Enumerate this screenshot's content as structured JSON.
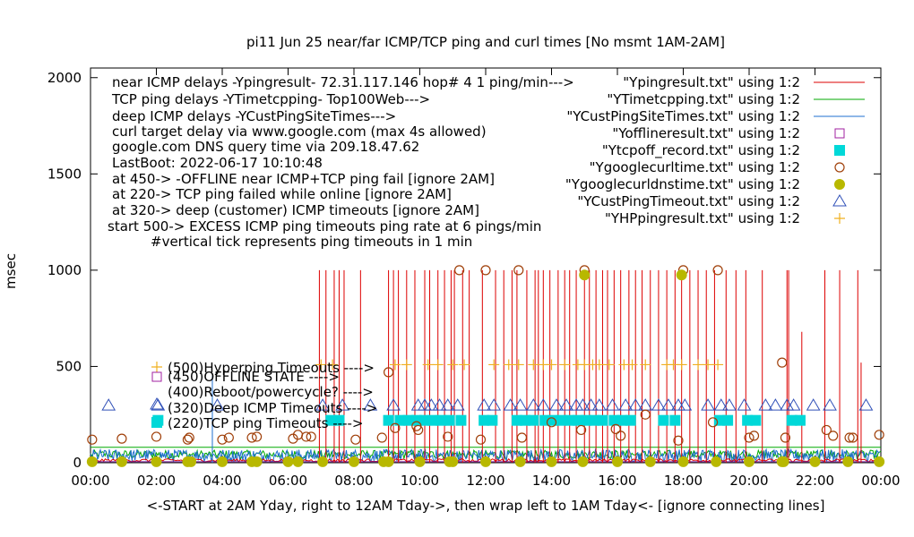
{
  "chart_data": {
    "type": "line",
    "title": "pi11 Jun 25  near/far ICMP/TCP ping and curl times [No msmt 1AM-2AM]",
    "ylabel": "msec",
    "xlabel": "<-START at 2AM Yday, right to 12AM Tday->, then wrap left to 1AM Tday<- [ignore connecting lines]",
    "xlim": [
      0,
      24
    ],
    "ylim": [
      0,
      2050
    ],
    "grid": false,
    "legend_position": "top-right",
    "y_ticks": [
      "0",
      "500",
      "1000",
      "1500",
      "2000"
    ],
    "x_ticks": [
      "00:00",
      "02:00",
      "04:00",
      "06:00",
      "08:00",
      "10:00",
      "12:00",
      "14:00",
      "16:00",
      "18:00",
      "20:00",
      "22:00",
      "00:00"
    ],
    "annotations": [
      "near ICMP delays -Ypingresult- 72.31.117.146 hop# 4 1 ping/min--->",
      "TCP ping delays -YTimetcpping- Top100Web--->",
      "deep ICMP delays -YCustPingSiteTimes--->",
      "curl target delay via www.google.com (max 4s allowed)",
      "google.com DNS query time via 209.18.47.62",
      "LastBoot: 2022-06-17 10:10:48",
      "at 450-> -OFFLINE near ICMP+TCP ping fail [ignore 2AM]",
      "at 220-> TCP ping failed while online [ignore 2AM]",
      "at 320-> deep (customer) ICMP timeouts [ignore 2AM]",
      "start 500-> EXCESS ICMP ping timeouts ping rate at 6 pings/min",
      "#vertical tick represents ping timeouts in 1 min"
    ],
    "inner_legend": [
      {
        "symbol": "plus",
        "label": "(500)Hyperping Timeouts ---->"
      },
      {
        "symbol": "square",
        "label": "(450)OFFLINE STATE ---->"
      },
      {
        "symbol": "none",
        "label": "(400)Reboot/powercycle? ---->"
      },
      {
        "symbol": "triangle",
        "label": "(320)Deep ICMP Timeouts ---->"
      },
      {
        "symbol": "filledsquare",
        "label": "(220)TCP ping Timeouts ---->"
      }
    ],
    "series": [
      {
        "name": "\"Ypingresult.txt\" using 1:2",
        "style": "line",
        "color": "#dd0000"
      },
      {
        "name": "\"YTimetcpping.txt\" using 1:2",
        "style": "line",
        "color": "#00aa00"
      },
      {
        "name": "\"YCustPingSiteTimes.txt\" using 1:2",
        "style": "line",
        "color": "#1f6fd0"
      },
      {
        "name": "\"Yofflineresult.txt\" using 1:2",
        "style": "square",
        "color": "#a020a0"
      },
      {
        "name": "\"Ytcpoff_record.txt\" using 1:2",
        "style": "filledsquare",
        "color": "#00d8d8"
      },
      {
        "name": "\"Ygooglecurltime.txt\" using 1:2",
        "style": "circle",
        "color": "#a0400a"
      },
      {
        "name": "\"Ygooglecurldnstime.txt\" using 1:2",
        "style": "filledcircle",
        "color": "#b8b800"
      },
      {
        "name": "\"YCustPingTimeout.txt\" using 1:2",
        "style": "triangle",
        "color": "#3050b8"
      },
      {
        "name": "\"YHPpingresult.txt\" using 1:2",
        "style": "plus",
        "color": "#f0b020"
      }
    ],
    "data": {
      "ping_spikes": [
        [
          6.95,
          1000
        ],
        [
          7.15,
          1000
        ],
        [
          7.4,
          1000
        ],
        [
          7.55,
          1000
        ],
        [
          7.7,
          1000
        ],
        [
          8.2,
          1000
        ],
        [
          9.05,
          1000
        ],
        [
          9.2,
          1000
        ],
        [
          9.35,
          1000
        ],
        [
          9.6,
          1000
        ],
        [
          9.85,
          1000
        ],
        [
          10.15,
          1000
        ],
        [
          10.3,
          1000
        ],
        [
          10.55,
          1000
        ],
        [
          10.75,
          1000
        ],
        [
          10.95,
          1000
        ],
        [
          11.05,
          1000
        ],
        [
          11.3,
          1000
        ],
        [
          11.5,
          1000
        ],
        [
          11.9,
          1000
        ],
        [
          12.3,
          1000
        ],
        [
          12.55,
          1000
        ],
        [
          12.8,
          1000
        ],
        [
          12.95,
          1000
        ],
        [
          13.25,
          1000
        ],
        [
          13.5,
          1000
        ],
        [
          13.6,
          1000
        ],
        [
          13.75,
          1000
        ],
        [
          13.95,
          1000
        ],
        [
          14.2,
          1000
        ],
        [
          14.4,
          1000
        ],
        [
          14.55,
          1000
        ],
        [
          14.75,
          1000
        ],
        [
          15.0,
          1000
        ],
        [
          15.15,
          1000
        ],
        [
          15.35,
          1000
        ],
        [
          15.55,
          1000
        ],
        [
          15.7,
          1000
        ],
        [
          15.9,
          1000
        ],
        [
          16.1,
          1000
        ],
        [
          16.35,
          1000
        ],
        [
          16.55,
          1000
        ],
        [
          16.75,
          1000
        ],
        [
          17.0,
          1000
        ],
        [
          17.25,
          1000
        ],
        [
          17.5,
          1000
        ],
        [
          17.75,
          1000
        ],
        [
          17.95,
          1000
        ],
        [
          18.2,
          1000
        ],
        [
          18.45,
          1000
        ],
        [
          18.7,
          1000
        ],
        [
          18.95,
          1000
        ],
        [
          19.3,
          1000
        ],
        [
          19.6,
          1000
        ],
        [
          19.9,
          1000
        ],
        [
          20.4,
          1000
        ],
        [
          21.15,
          1000
        ],
        [
          21.2,
          1000
        ],
        [
          21.6,
          680
        ],
        [
          22.3,
          1000
        ],
        [
          22.75,
          1000
        ],
        [
          23.3,
          1000
        ],
        [
          23.4,
          520
        ]
      ],
      "tcp_timeouts_220": [
        [
          2.05,
          220
        ],
        [
          7.3,
          220
        ],
        [
          7.55,
          220
        ],
        [
          9.05,
          220
        ],
        [
          9.4,
          220
        ],
        [
          9.65,
          220
        ],
        [
          9.9,
          220
        ],
        [
          10.15,
          220
        ],
        [
          10.4,
          220
        ],
        [
          10.65,
          220
        ],
        [
          10.9,
          220
        ],
        [
          11.25,
          220
        ],
        [
          11.95,
          220
        ],
        [
          12.2,
          220
        ],
        [
          12.95,
          220
        ],
        [
          13.2,
          220
        ],
        [
          13.45,
          220
        ],
        [
          13.8,
          220
        ],
        [
          14.05,
          220
        ],
        [
          14.3,
          220
        ],
        [
          14.55,
          220
        ],
        [
          14.8,
          220
        ],
        [
          15.05,
          220
        ],
        [
          15.3,
          220
        ],
        [
          15.55,
          220
        ],
        [
          15.9,
          220
        ],
        [
          16.15,
          220
        ],
        [
          16.4,
          220
        ],
        [
          17.4,
          220
        ],
        [
          17.75,
          220
        ],
        [
          19.1,
          220
        ],
        [
          19.35,
          220
        ],
        [
          19.95,
          220
        ],
        [
          20.2,
          220
        ],
        [
          21.3,
          220
        ],
        [
          21.55,
          220
        ]
      ],
      "custping_timeouts_320": [
        [
          0.55,
          320
        ],
        [
          2.05,
          320
        ],
        [
          3.85,
          320
        ],
        [
          7.05,
          320
        ],
        [
          7.65,
          320
        ],
        [
          8.5,
          320
        ],
        [
          9.2,
          320
        ],
        [
          9.95,
          320
        ],
        [
          10.15,
          320
        ],
        [
          10.35,
          320
        ],
        [
          10.6,
          320
        ],
        [
          10.85,
          320
        ],
        [
          11.15,
          320
        ],
        [
          11.95,
          320
        ],
        [
          12.25,
          320
        ],
        [
          12.75,
          320
        ],
        [
          13.05,
          320
        ],
        [
          13.45,
          320
        ],
        [
          13.75,
          320
        ],
        [
          14.15,
          320
        ],
        [
          14.45,
          320
        ],
        [
          14.75,
          320
        ],
        [
          14.95,
          320
        ],
        [
          15.2,
          320
        ],
        [
          15.45,
          320
        ],
        [
          15.85,
          320
        ],
        [
          16.25,
          320
        ],
        [
          16.55,
          320
        ],
        [
          16.85,
          320
        ],
        [
          17.25,
          320
        ],
        [
          17.55,
          320
        ],
        [
          17.85,
          320
        ],
        [
          18.05,
          320
        ],
        [
          18.75,
          320
        ],
        [
          19.15,
          320
        ],
        [
          19.4,
          320
        ],
        [
          19.85,
          320
        ],
        [
          20.5,
          320
        ],
        [
          20.8,
          320
        ],
        [
          21.15,
          320
        ],
        [
          21.35,
          320
        ],
        [
          21.95,
          320
        ],
        [
          22.45,
          320
        ],
        [
          23.55,
          320
        ]
      ],
      "hyperping_500": [
        [
          7.0,
          500
        ],
        [
          7.35,
          500
        ],
        [
          9.25,
          500
        ],
        [
          9.6,
          500
        ],
        [
          10.25,
          500
        ],
        [
          10.55,
          500
        ],
        [
          11.0,
          500
        ],
        [
          11.35,
          500
        ],
        [
          12.25,
          500
        ],
        [
          12.7,
          500
        ],
        [
          13.0,
          500
        ],
        [
          13.45,
          500
        ],
        [
          13.75,
          500
        ],
        [
          14.0,
          500
        ],
        [
          14.4,
          500
        ],
        [
          14.8,
          500
        ],
        [
          15.0,
          500
        ],
        [
          15.25,
          500
        ],
        [
          15.45,
          500
        ],
        [
          15.75,
          500
        ],
        [
          16.2,
          500
        ],
        [
          16.45,
          500
        ],
        [
          16.85,
          500
        ],
        [
          17.5,
          500
        ],
        [
          17.7,
          500
        ],
        [
          17.95,
          500
        ],
        [
          18.45,
          500
        ],
        [
          18.75,
          500
        ],
        [
          19.05,
          500
        ]
      ],
      "curl_times": [
        [
          0.05,
          120
        ],
        [
          0.95,
          125
        ],
        [
          2.0,
          135
        ],
        [
          2.95,
          120
        ],
        [
          3.0,
          130
        ],
        [
          4.0,
          120
        ],
        [
          4.2,
          130
        ],
        [
          4.9,
          130
        ],
        [
          5.05,
          135
        ],
        [
          6.15,
          125
        ],
        [
          6.3,
          145
        ],
        [
          6.55,
          135
        ],
        [
          6.7,
          135
        ],
        [
          8.05,
          120
        ],
        [
          8.85,
          130
        ],
        [
          9.05,
          470
        ],
        [
          9.25,
          180
        ],
        [
          9.9,
          190
        ],
        [
          9.95,
          170
        ],
        [
          10.85,
          135
        ],
        [
          11.2,
          1000
        ],
        [
          11.85,
          120
        ],
        [
          12.0,
          1000
        ],
        [
          13.0,
          1000
        ],
        [
          13.1,
          130
        ],
        [
          14.0,
          210
        ],
        [
          14.9,
          170
        ],
        [
          15.0,
          1000
        ],
        [
          15.95,
          175
        ],
        [
          16.1,
          140
        ],
        [
          16.85,
          250
        ],
        [
          17.85,
          115
        ],
        [
          18.0,
          1000
        ],
        [
          18.9,
          210
        ],
        [
          19.05,
          1000
        ],
        [
          20.0,
          130
        ],
        [
          20.15,
          140
        ],
        [
          21.0,
          520
        ],
        [
          21.1,
          130
        ],
        [
          22.35,
          170
        ],
        [
          22.55,
          140
        ],
        [
          23.05,
          130
        ],
        [
          23.15,
          130
        ],
        [
          23.95,
          145
        ]
      ],
      "dns_times": [
        [
          0.05,
          5
        ],
        [
          0.95,
          5
        ],
        [
          2.0,
          5
        ],
        [
          2.95,
          5
        ],
        [
          3.05,
          5
        ],
        [
          4.0,
          5
        ],
        [
          4.9,
          5
        ],
        [
          5.05,
          5
        ],
        [
          6.0,
          5
        ],
        [
          6.3,
          5
        ],
        [
          7.05,
          5
        ],
        [
          8.0,
          5
        ],
        [
          8.9,
          5
        ],
        [
          9.05,
          5
        ],
        [
          10.0,
          5
        ],
        [
          10.9,
          5
        ],
        [
          11.0,
          5
        ],
        [
          12.0,
          5
        ],
        [
          13.05,
          5
        ],
        [
          14.0,
          5
        ],
        [
          14.95,
          5
        ],
        [
          15.0,
          975
        ],
        [
          16.0,
          5
        ],
        [
          17.0,
          5
        ],
        [
          17.95,
          975
        ],
        [
          18.0,
          5
        ],
        [
          19.0,
          5
        ],
        [
          20.0,
          5
        ],
        [
          21.0,
          5
        ],
        [
          21.05,
          5
        ],
        [
          22.0,
          5
        ],
        [
          23.0,
          5
        ],
        [
          23.95,
          5
        ]
      ]
    }
  }
}
